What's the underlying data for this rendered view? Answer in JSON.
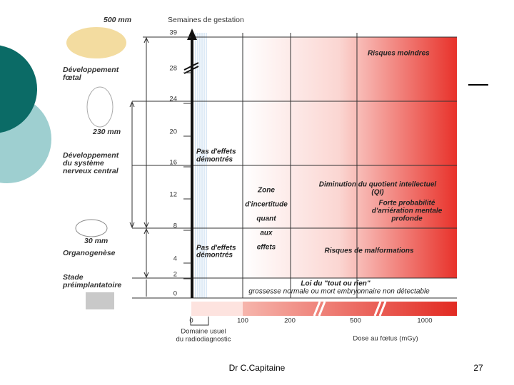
{
  "axis": {
    "title": "Semaines de gestation",
    "ticks": [
      "39",
      "28",
      "24",
      "20",
      "16",
      "12",
      "8",
      "4",
      "2",
      "0"
    ]
  },
  "stages": {
    "size_fetal": "500 mm",
    "fetal": [
      "Développement",
      "fœtal"
    ],
    "size_nervous": "230 mm",
    "nervous": [
      "Développement",
      "du système",
      "nerveux central"
    ],
    "size_organo": "30 mm",
    "organo": "Organogenèse",
    "preimplant": [
      "Stade",
      "préimplantatoire"
    ]
  },
  "zones": {
    "low_risk": "Risques moindres",
    "no_effect_top": [
      "Pas d'effets",
      "démontrés"
    ],
    "no_effect_bottom": [
      "Pas d'effets",
      "démontrés"
    ],
    "uncertainty": [
      "Zone",
      "d'incertitude",
      "quant",
      "aux",
      "effets"
    ],
    "iq": [
      "Diminution du quotient intellectuel",
      "(QI)"
    ],
    "retardation": [
      "Forte probabilité",
      "d'arriération mentale",
      "profonde"
    ],
    "malformations": "Risques de malformations",
    "all_or_nothing": "Loi du \"tout ou rien\"",
    "all_or_nothing_note": "grossesse normale ou mort embryonnaire non détectable"
  },
  "dose_axis": {
    "ticks": [
      "0",
      "100",
      "200",
      "500",
      "1000"
    ],
    "usual": [
      "Domaine usuel",
      "du radiodiagnostic"
    ],
    "title": "Dose au fœtus (mGy)"
  },
  "footer": {
    "author": "Dr C.Capitaine",
    "page": "27"
  }
}
